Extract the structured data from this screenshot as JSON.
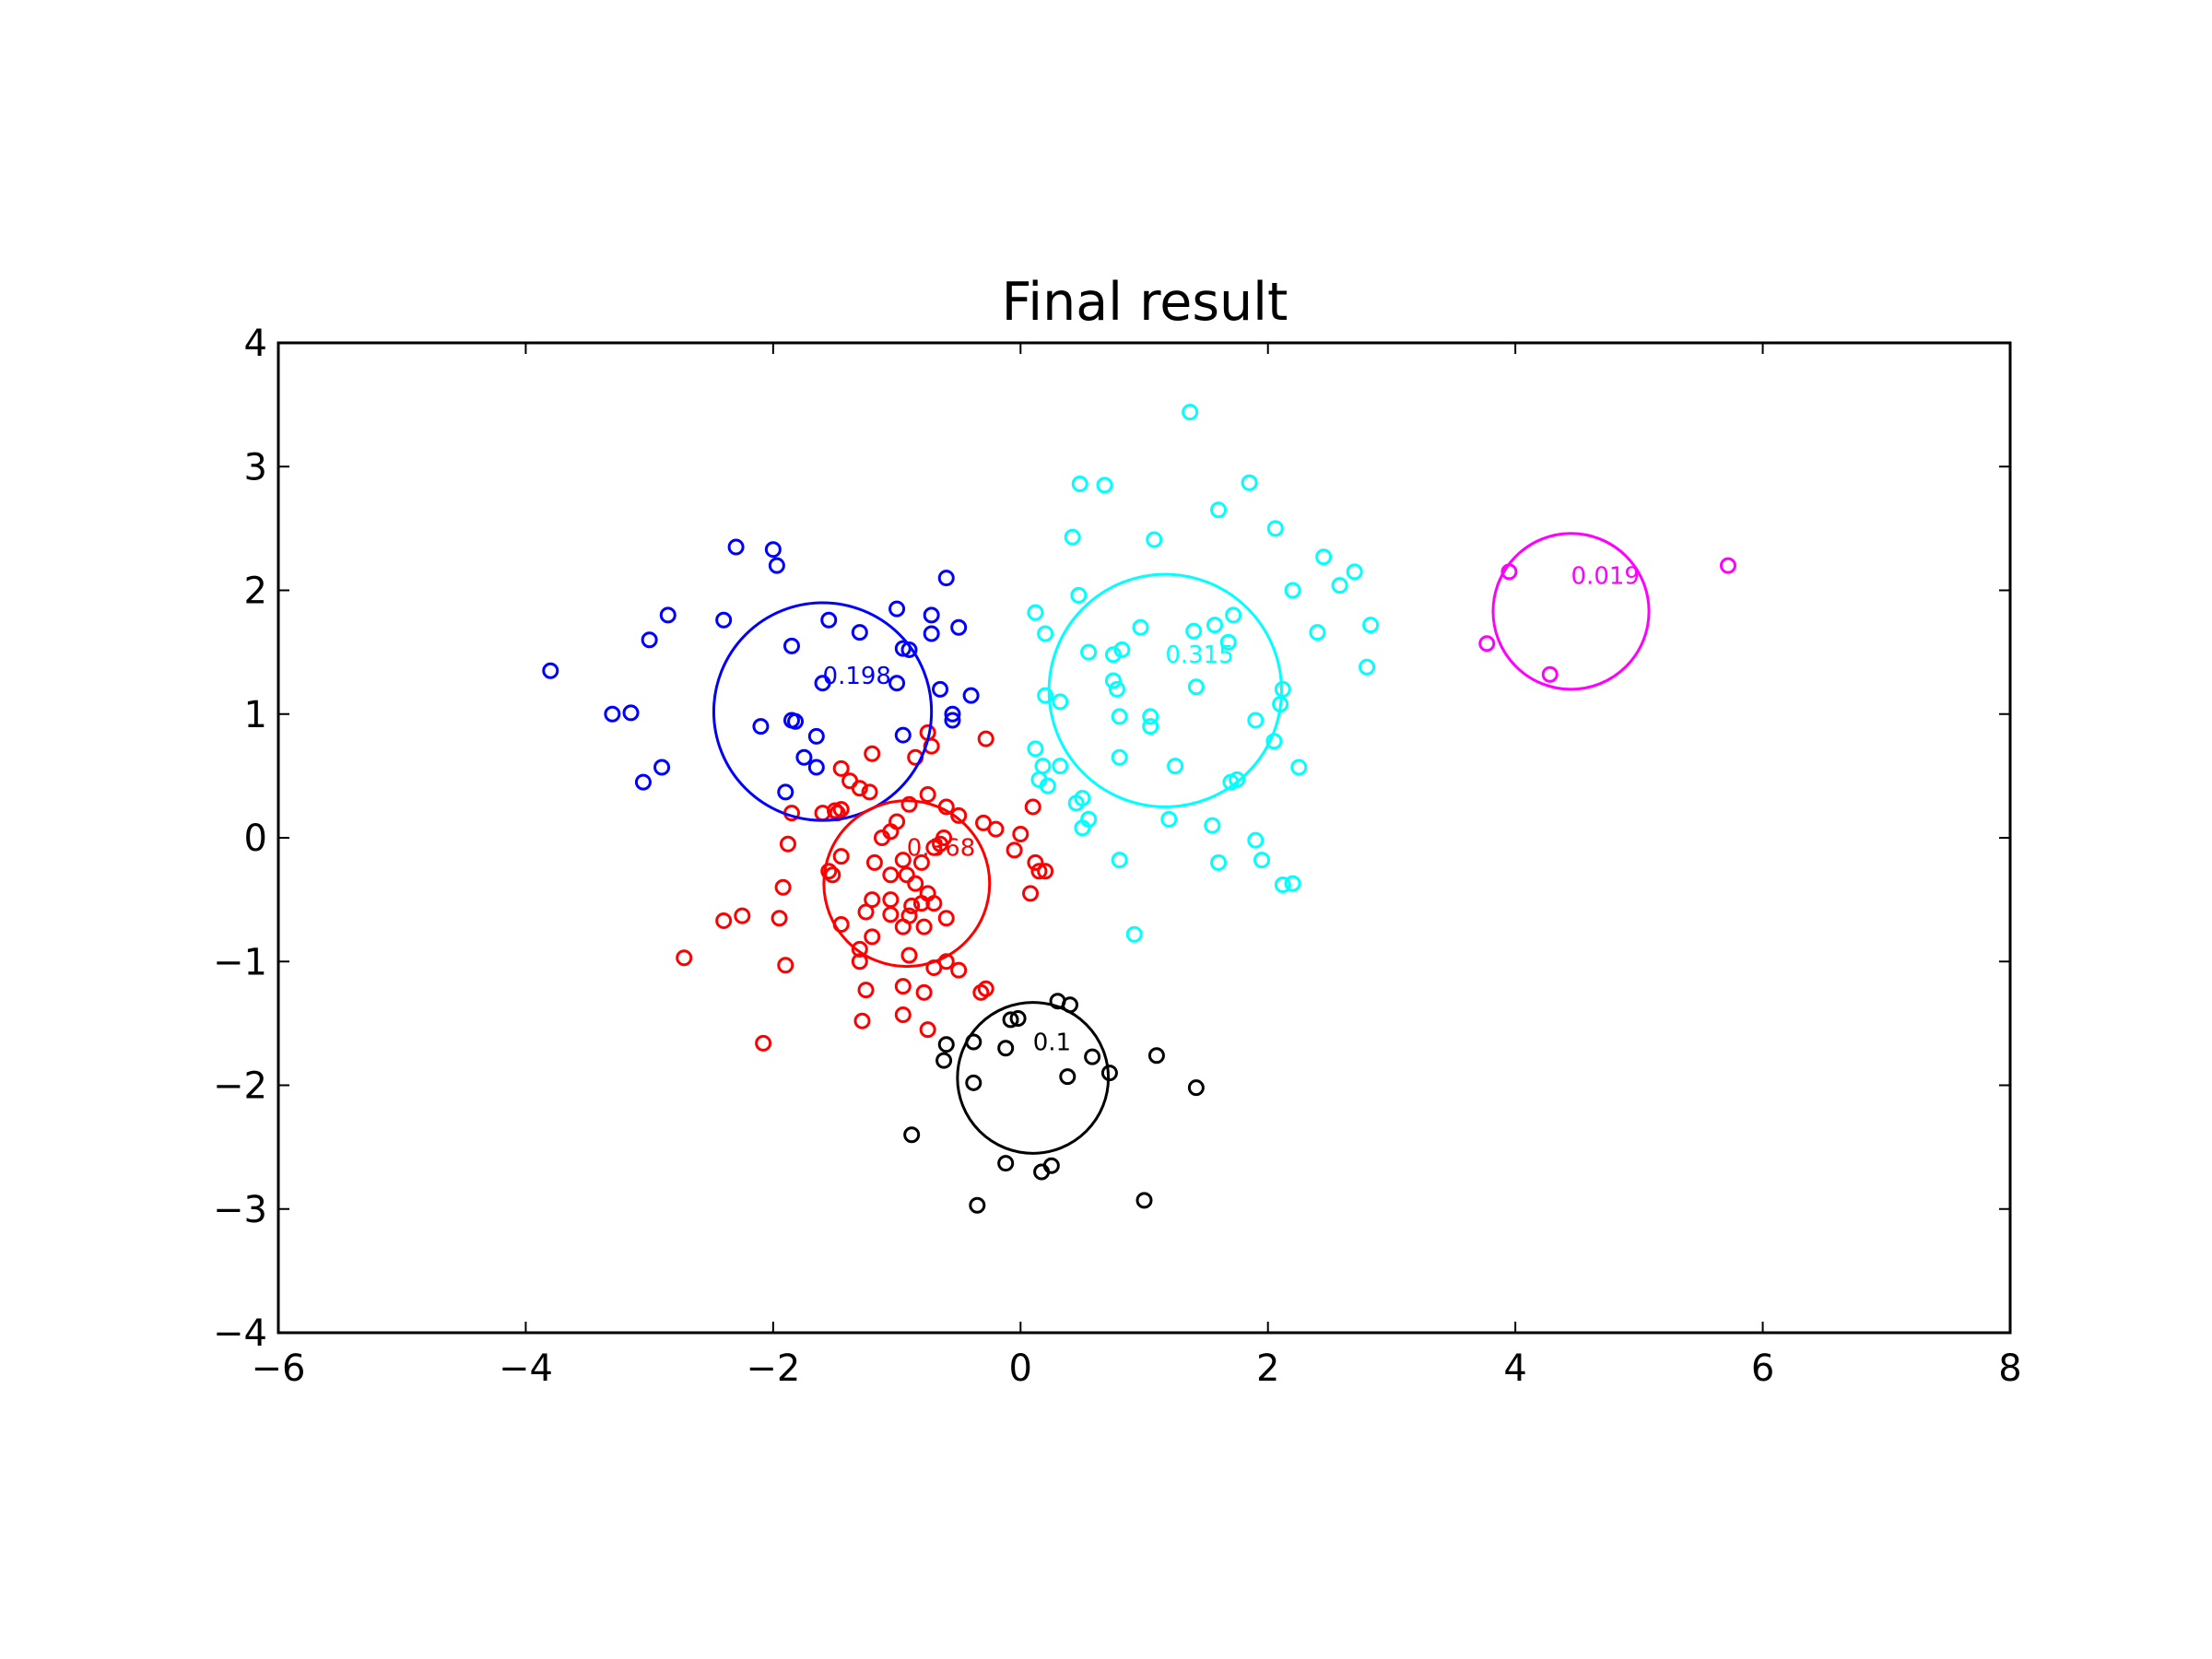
{
  "chart_data": {
    "type": "scatter",
    "title": "Final result",
    "xlabel": "",
    "ylabel": "",
    "xlim": [
      -6,
      8
    ],
    "ylim": [
      -4,
      4
    ],
    "xticks": [
      -6,
      -4,
      -2,
      0,
      2,
      4,
      6,
      8
    ],
    "yticks": [
      -4,
      -3,
      -2,
      -1,
      0,
      1,
      2,
      3,
      4
    ],
    "xtick_labels": [
      "−6",
      "−4",
      "−2",
      "0",
      "2",
      "4",
      "6",
      "8"
    ],
    "ytick_labels": [
      "−4",
      "−3",
      "−2",
      "−1",
      "0",
      "1",
      "2",
      "3",
      "4"
    ],
    "grid": false,
    "legend": "none",
    "series": [
      {
        "color": "#0000ff",
        "points": [
          [
            -3.8,
            1.35
          ],
          [
            -2.3,
            2.35
          ],
          [
            -2.0,
            2.33
          ],
          [
            -1.97,
            2.2
          ],
          [
            -2.4,
            1.76
          ],
          [
            -2.85,
            1.8
          ],
          [
            -3.0,
            1.6
          ],
          [
            -3.3,
            1.0
          ],
          [
            -3.15,
            1.01
          ],
          [
            -2.9,
            0.57
          ],
          [
            -3.05,
            0.45
          ],
          [
            -2.1,
            0.9
          ],
          [
            -1.85,
            0.95
          ],
          [
            -1.82,
            0.94
          ],
          [
            -1.85,
            1.55
          ],
          [
            -1.6,
            1.25
          ],
          [
            -1.55,
            1.76
          ],
          [
            -1.3,
            1.66
          ],
          [
            -1.0,
            1.85
          ],
          [
            -0.95,
            1.53
          ],
          [
            -0.9,
            1.52
          ],
          [
            -0.72,
            1.8
          ],
          [
            -0.72,
            1.65
          ],
          [
            -0.6,
            2.1
          ],
          [
            -0.5,
            1.7
          ],
          [
            -0.65,
            1.2
          ],
          [
            -0.55,
            1.0
          ],
          [
            -0.55,
            0.95
          ],
          [
            -0.4,
            1.15
          ],
          [
            -0.95,
            0.83
          ],
          [
            -1.0,
            1.25
          ],
          [
            -1.65,
            0.82
          ],
          [
            -1.75,
            0.65
          ],
          [
            -1.65,
            0.57
          ],
          [
            -1.9,
            0.37
          ]
        ],
        "cluster": {
          "center": [
            -1.6,
            1.02
          ],
          "radius": 0.88,
          "weight_label": "0.198"
        }
      },
      {
        "color": "#00ffff",
        "points": [
          [
            1.37,
            3.44
          ],
          [
            0.48,
            2.86
          ],
          [
            0.68,
            2.85
          ],
          [
            1.85,
            2.87
          ],
          [
            0.42,
            2.43
          ],
          [
            1.08,
            2.41
          ],
          [
            1.6,
            2.65
          ],
          [
            2.06,
            2.5
          ],
          [
            2.45,
            2.27
          ],
          [
            2.7,
            2.15
          ],
          [
            2.58,
            2.04
          ],
          [
            2.2,
            2.0
          ],
          [
            0.47,
            1.96
          ],
          [
            0.12,
            1.82
          ],
          [
            0.2,
            1.65
          ],
          [
            0.97,
            1.7
          ],
          [
            1.4,
            1.67
          ],
          [
            1.57,
            1.72
          ],
          [
            1.72,
            1.8
          ],
          [
            1.68,
            1.58
          ],
          [
            2.4,
            1.66
          ],
          [
            2.83,
            1.72
          ],
          [
            0.55,
            1.5
          ],
          [
            0.75,
            1.48
          ],
          [
            0.82,
            1.52
          ],
          [
            2.8,
            1.38
          ],
          [
            0.75,
            1.27
          ],
          [
            0.78,
            1.2
          ],
          [
            0.2,
            1.15
          ],
          [
            0.32,
            1.1
          ],
          [
            1.05,
            0.98
          ],
          [
            1.05,
            0.9
          ],
          [
            0.8,
            0.98
          ],
          [
            1.42,
            1.22
          ],
          [
            2.1,
            1.08
          ],
          [
            2.12,
            1.2
          ],
          [
            1.9,
            0.95
          ],
          [
            0.12,
            0.72
          ],
          [
            2.05,
            0.78
          ],
          [
            0.8,
            0.65
          ],
          [
            0.18,
            0.58
          ],
          [
            0.32,
            0.58
          ],
          [
            1.25,
            0.58
          ],
          [
            2.25,
            0.57
          ],
          [
            0.15,
            0.47
          ],
          [
            0.22,
            0.42
          ],
          [
            1.7,
            0.45
          ],
          [
            1.75,
            0.47
          ],
          [
            0.5,
            0.32
          ],
          [
            0.45,
            0.28
          ],
          [
            0.55,
            0.15
          ],
          [
            0.5,
            0.08
          ],
          [
            1.2,
            0.15
          ],
          [
            1.55,
            0.1
          ],
          [
            1.9,
            -0.02
          ],
          [
            1.95,
            -0.18
          ],
          [
            0.8,
            -0.18
          ],
          [
            1.6,
            -0.2
          ],
          [
            2.12,
            -0.38
          ],
          [
            2.2,
            -0.37
          ],
          [
            0.92,
            -0.78
          ]
        ],
        "cluster": {
          "center": [
            1.17,
            1.19
          ],
          "radius": 0.94,
          "weight_label": "0.315"
        }
      },
      {
        "color": "#ff00ff",
        "points": [
          [
            5.72,
            2.2
          ],
          [
            3.95,
            2.15
          ],
          [
            3.77,
            1.57
          ],
          [
            4.28,
            1.32
          ]
        ],
        "cluster": {
          "center": [
            4.45,
            1.83
          ],
          "radius": 0.63,
          "weight_label": "0.019"
        }
      },
      {
        "color": "#ff0000",
        "points": [
          [
            -0.75,
            0.85
          ],
          [
            -0.28,
            0.8
          ],
          [
            -0.72,
            0.74
          ],
          [
            -1.2,
            0.68
          ],
          [
            -0.85,
            0.65
          ],
          [
            -1.45,
            0.56
          ],
          [
            -1.38,
            0.46
          ],
          [
            -1.3,
            0.4
          ],
          [
            -1.22,
            0.37
          ],
          [
            -0.75,
            0.35
          ],
          [
            -1.45,
            0.23
          ],
          [
            -1.48,
            0.2
          ],
          [
            -1.5,
            0.22
          ],
          [
            -1.6,
            0.2
          ],
          [
            -1.85,
            0.2
          ],
          [
            -0.6,
            0.25
          ],
          [
            -0.9,
            0.27
          ],
          [
            -0.5,
            0.18
          ],
          [
            0.1,
            0.25
          ],
          [
            -1.0,
            0.13
          ],
          [
            -1.05,
            0.05
          ],
          [
            -0.3,
            0.12
          ],
          [
            -0.2,
            0.07
          ],
          [
            0.0,
            0.03
          ],
          [
            -0.62,
            0.0
          ],
          [
            -1.12,
            0.0
          ],
          [
            -1.88,
            -0.05
          ],
          [
            -0.65,
            -0.05
          ],
          [
            -0.7,
            -0.08
          ],
          [
            -0.05,
            -0.1
          ],
          [
            -1.45,
            -0.15
          ],
          [
            -0.95,
            -0.18
          ],
          [
            -0.8,
            -0.2
          ],
          [
            -1.18,
            -0.2
          ],
          [
            0.12,
            -0.2
          ],
          [
            0.2,
            -0.27
          ],
          [
            0.15,
            -0.27
          ],
          [
            -1.55,
            -0.27
          ],
          [
            -1.52,
            -0.3
          ],
          [
            -1.05,
            -0.3
          ],
          [
            -0.92,
            -0.3
          ],
          [
            -0.85,
            -0.37
          ],
          [
            -1.92,
            -0.4
          ],
          [
            -0.75,
            -0.45
          ],
          [
            0.08,
            -0.45
          ],
          [
            -1.2,
            -0.5
          ],
          [
            -1.05,
            -0.5
          ],
          [
            -0.8,
            -0.53
          ],
          [
            -0.7,
            -0.53
          ],
          [
            -0.88,
            -0.55
          ],
          [
            -1.25,
            -0.6
          ],
          [
            -1.05,
            -0.62
          ],
          [
            -0.9,
            -0.63
          ],
          [
            -1.95,
            -0.65
          ],
          [
            -0.6,
            -0.65
          ],
          [
            -2.25,
            -0.63
          ],
          [
            -2.4,
            -0.67
          ],
          [
            -1.45,
            -0.7
          ],
          [
            -0.95,
            -0.72
          ],
          [
            -0.78,
            -0.72
          ],
          [
            -1.2,
            -0.8
          ],
          [
            -1.3,
            -0.9
          ],
          [
            -0.9,
            -0.95
          ],
          [
            -2.72,
            -0.97
          ],
          [
            -1.9,
            -1.03
          ],
          [
            -0.6,
            -1.0
          ],
          [
            -1.3,
            -1.0
          ],
          [
            -0.7,
            -1.05
          ],
          [
            -0.5,
            -1.07
          ],
          [
            -1.25,
            -1.23
          ],
          [
            -0.95,
            -1.2
          ],
          [
            -0.78,
            -1.25
          ],
          [
            -0.32,
            -1.25
          ],
          [
            -0.28,
            -1.22
          ],
          [
            -1.28,
            -1.48
          ],
          [
            -0.95,
            -1.43
          ],
          [
            -0.75,
            -1.55
          ],
          [
            -2.08,
            -1.66
          ]
        ],
        "cluster": {
          "center": [
            -0.92,
            -0.37
          ],
          "radius": 0.67,
          "weight_label": "0.368"
        }
      },
      {
        "color": "#000000",
        "points": [
          [
            0.3,
            -1.32
          ],
          [
            0.4,
            -1.35
          ],
          [
            -0.08,
            -1.47
          ],
          [
            -0.02,
            -1.46
          ],
          [
            -0.6,
            -1.67
          ],
          [
            -0.38,
            -1.65
          ],
          [
            -0.12,
            -1.7
          ],
          [
            -0.62,
            -1.8
          ],
          [
            0.58,
            -1.77
          ],
          [
            1.1,
            -1.76
          ],
          [
            0.72,
            -1.9
          ],
          [
            0.38,
            -1.93
          ],
          [
            -0.38,
            -1.98
          ],
          [
            1.42,
            -2.02
          ],
          [
            -0.88,
            -2.4
          ],
          [
            -0.12,
            -2.63
          ],
          [
            0.25,
            -2.65
          ],
          [
            0.17,
            -2.7
          ],
          [
            -0.35,
            -2.97
          ],
          [
            1.0,
            -2.93
          ]
        ],
        "cluster": {
          "center": [
            0.1,
            -1.94
          ],
          "radius": 0.61,
          "weight_label": "0.1"
        }
      }
    ]
  }
}
